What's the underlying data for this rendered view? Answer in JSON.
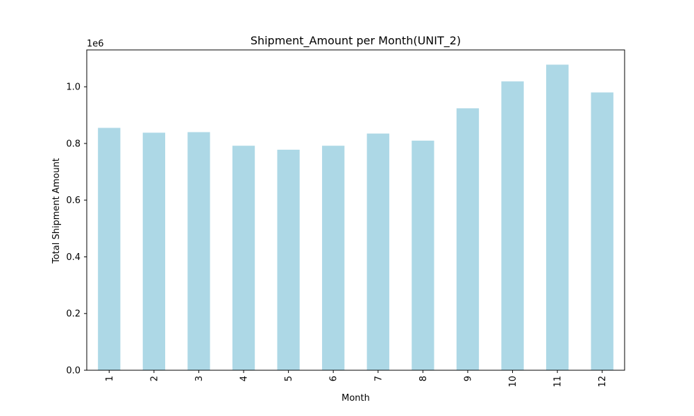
{
  "chart_data": {
    "type": "bar",
    "title": "Shipment_Amount per Month(UNIT_2)",
    "xlabel": "Month",
    "ylabel": "Total Shipment Amount",
    "y_offset_label": "1e6",
    "y_scale": 1000000,
    "categories": [
      "1",
      "2",
      "3",
      "4",
      "5",
      "6",
      "7",
      "8",
      "9",
      "10",
      "11",
      "12"
    ],
    "values": [
      855000,
      838000,
      840000,
      792000,
      778000,
      792000,
      835000,
      810000,
      924000,
      1019000,
      1078000,
      980000
    ],
    "ylim": [
      0,
      1130000
    ],
    "yticks": [
      0,
      200000,
      400000,
      600000,
      800000,
      1000000
    ],
    "ytick_labels": [
      "0.0",
      "0.2",
      "0.4",
      "0.6",
      "0.8",
      "1.0"
    ],
    "bar_color": "#add8e6",
    "grid": false,
    "legend": "none"
  }
}
